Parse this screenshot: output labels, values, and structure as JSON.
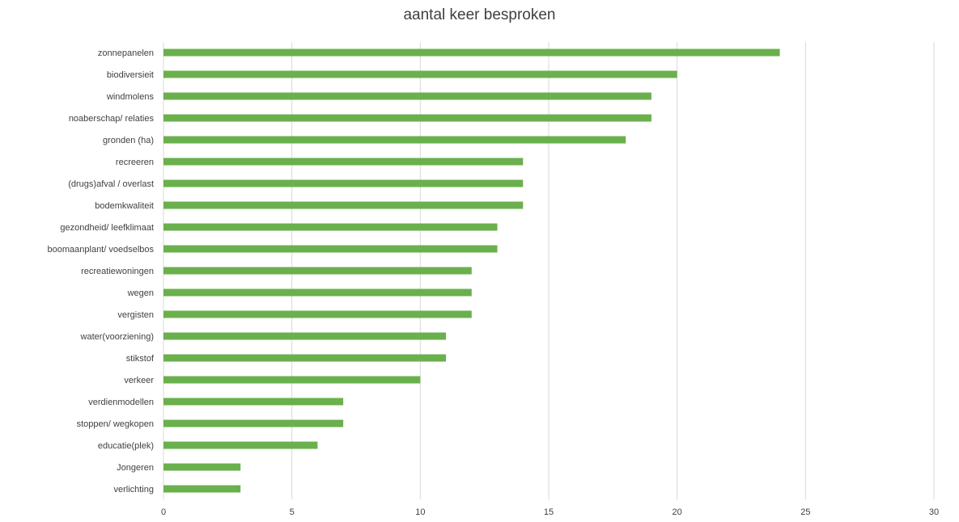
{
  "chart_data": {
    "type": "bar",
    "orientation": "horizontal",
    "title": "aantal keer besproken",
    "xlabel": "",
    "ylabel": "",
    "xlim": [
      0,
      30
    ],
    "x_ticks": [
      0,
      5,
      10,
      15,
      20,
      25,
      30
    ],
    "grid": true,
    "legend": "none",
    "bar_color": "#6ab04c",
    "categories": [
      "zonnepanelen",
      "biodiversieit",
      "windmolens",
      "noaberschap/ relaties",
      "gronden (ha)",
      "recreeren",
      "(drugs)afval / overlast",
      "bodemkwaliteit",
      "gezondheid/ leefklimaat",
      "boomaanplant/ voedselbos",
      "recreatiewoningen",
      "wegen",
      "vergisten",
      "water(voorziening)",
      "stikstof",
      "verkeer",
      "verdienmodellen",
      "stoppen/ wegkopen",
      "educatie(plek)",
      "Jongeren",
      "verlichting"
    ],
    "values": [
      24,
      20,
      19,
      19,
      18,
      14,
      14,
      14,
      13,
      13,
      12,
      12,
      12,
      11,
      11,
      10,
      7,
      7,
      6,
      3,
      3
    ]
  }
}
